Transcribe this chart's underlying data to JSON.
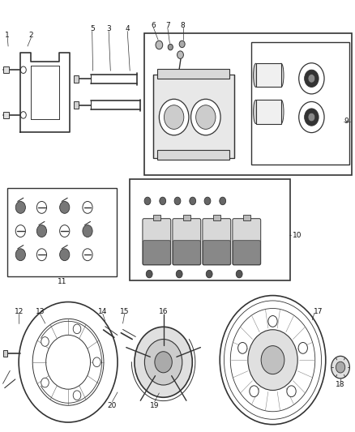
{
  "bg_color": "#ffffff",
  "fig_width": 4.38,
  "fig_height": 5.33,
  "dpi": 100,
  "line_color": "#333333",
  "label_fontsize": 6.5
}
